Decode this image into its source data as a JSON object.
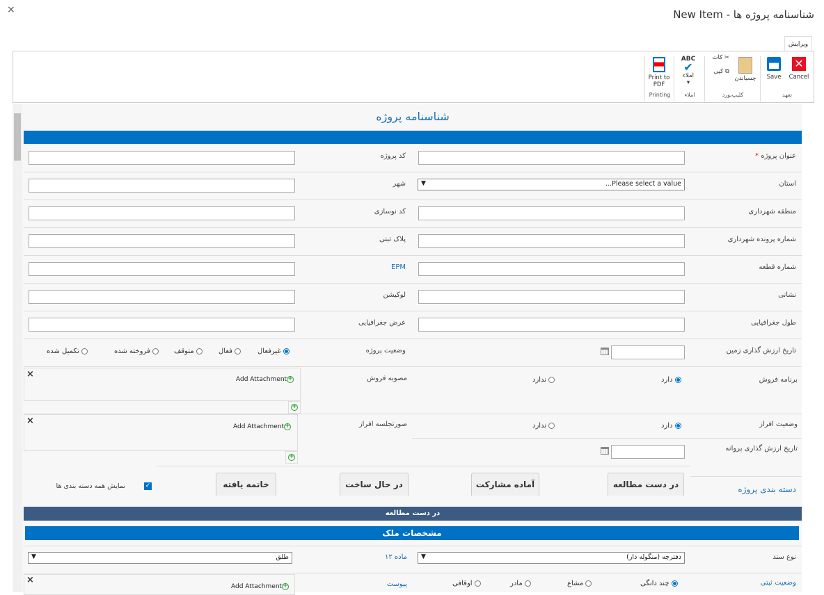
{
  "window": {
    "title": "شناسنامه پروژه ها - New Item",
    "close": "×"
  },
  "ribbon": {
    "tab": "ویرایش",
    "cancel": "Cancel",
    "save": "Save",
    "paste": "چسباندن",
    "cut": "کات",
    "copy": "کپی",
    "spell_abc": "ABC",
    "spell": "املاء",
    "pdf": "Print to PDF",
    "groups": {
      "commit": "تعهد",
      "clipboard": "کلیپ‌بورد",
      "spelling": "املاء",
      "printing": "Printing"
    }
  },
  "form": {
    "title": "شناسنامه پروژه",
    "rows": [
      {
        "right_label": "عنوان پروژه",
        "required": "*",
        "left_label": "کد پروژه"
      },
      {
        "right_label": "استان",
        "left_label": "شهر",
        "select": "Please select a value..."
      },
      {
        "right_label": "منطقه شهرداری",
        "left_label": "کد نوسازی"
      },
      {
        "right_label": "شماره پرونده شهرداری",
        "left_label": "پلاک ثبتی"
      },
      {
        "right_label": "شماره قطعه",
        "left_label": "EPM"
      },
      {
        "right_label": "نشانی",
        "left_label": "لوکیشن"
      },
      {
        "right_label": "طول جغرافیایی",
        "left_label": "عرض جغرافیایی"
      }
    ],
    "land_date_label": "تاریخ ارزش گذاری زمین",
    "status_label": "وضعیت پروژه",
    "status_options": [
      "غیرفعال",
      "فعال",
      "متوقف",
      "فروخته شده",
      "تکمیل شده"
    ],
    "status_selected": "غیرفعال",
    "sale_program_label": "برنامه فروش",
    "sale_options": [
      "دارد",
      "ندارد"
    ],
    "sale_selected": "دارد",
    "sale_approval_label": "مصوبه فروش",
    "split_status_label": "وضعیت افراز",
    "split_options": [
      "دارد",
      "ندارد"
    ],
    "split_selected": "دارد",
    "split_minutes_label": "صورتجلسه افراز",
    "permit_date_label": "تاریخ ارزش گذاری پروانه",
    "add_attachment": "Add Attachment",
    "remove": "×",
    "category_label": "دسته بندی پروژه",
    "categories": [
      "در دست مطالعه",
      "آماده مشارکت",
      "در حال ساخت",
      "خاتمه یافته"
    ],
    "show_all_label": "نمایش همه دسته بندی ها",
    "show_all_checked": true,
    "active_category": "در دست مطالعه",
    "section": "مشخصات ملک",
    "doc_type_label": "نوع سند",
    "doc_type_value": "دفترچه (منگوله دار)",
    "article12_label": "ماده ۱۲",
    "article12_value": "طلق",
    "reg_status_label": "وضعیت ثبتی",
    "reg_options": [
      "چند دانگی",
      "مشاع",
      "مادر",
      "اوقافی"
    ],
    "reg_selected": "چند دانگی",
    "attachment_label": "پیوست"
  },
  "colors": {
    "accent": "#0072c6",
    "dark_bar": "#3b5b82"
  }
}
